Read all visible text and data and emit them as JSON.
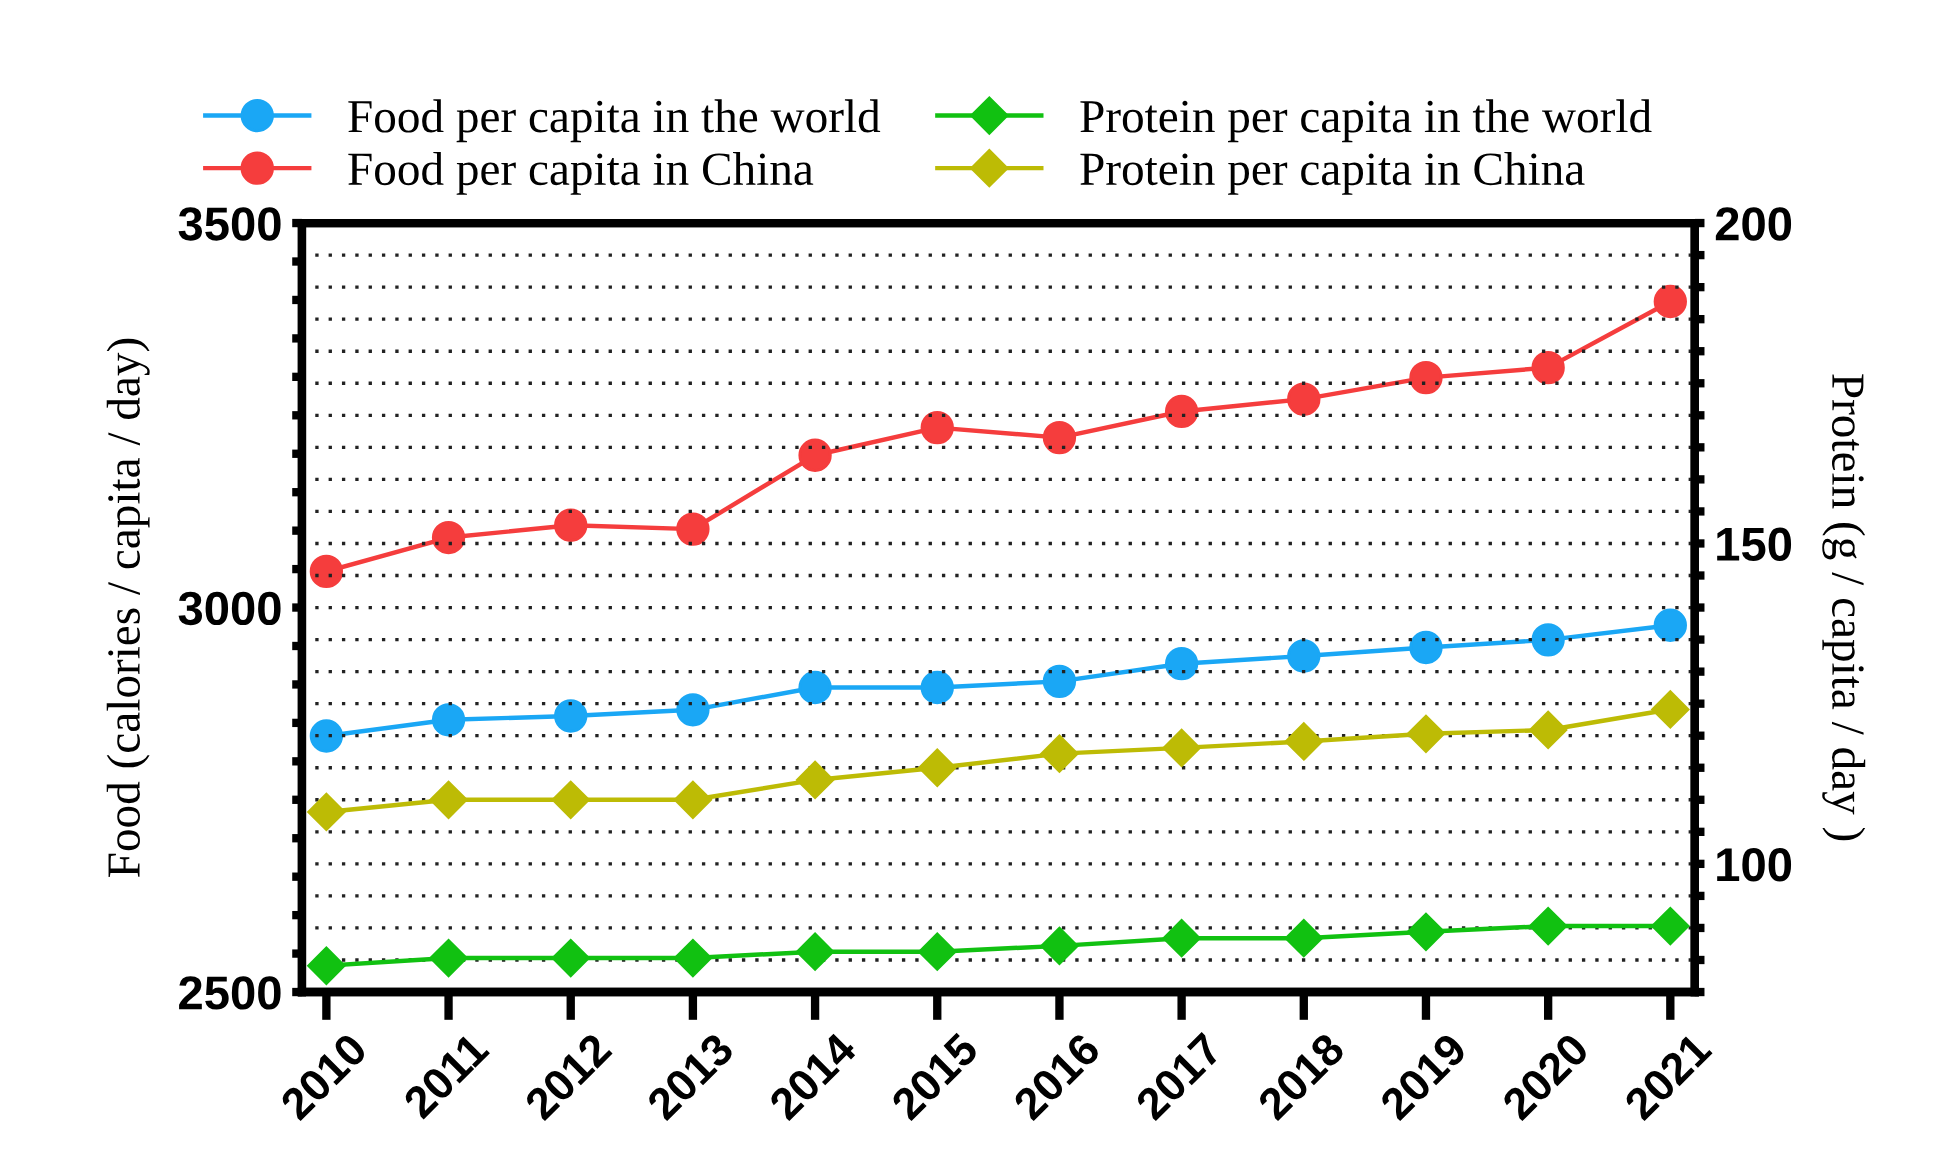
{
  "chart_data": {
    "type": "line",
    "ylabel": "Food (calories / capita / day)",
    "y2label": "Protein (g / capita / day )",
    "categories": [
      "2010",
      "2011",
      "2012",
      "2013",
      "2014",
      "2015",
      "2016",
      "2017",
      "2018",
      "2019",
      "2020",
      "2021"
    ],
    "series": [
      {
        "name": "Food per capita in the world",
        "color": "#1aa7f5",
        "marker": "circle",
        "values": [
          2833,
          2854,
          2859,
          2867,
          2896,
          2896,
          2904,
          2927,
          2937,
          2948,
          2958,
          2977
        ]
      },
      {
        "name": "Food per capita in China",
        "color": "#f53d3d",
        "marker": "circle",
        "values": [
          3047,
          3091,
          3107,
          3102,
          3198,
          3234,
          3221,
          3255,
          3271,
          3299,
          3312,
          3398
        ]
      },
      {
        "name": "Protein per capita in the world",
        "color": "#11c111",
        "marker": "diamond",
        "axis": "y2",
        "values": [
          84.1,
          85.3,
          85.3,
          85.3,
          86.3,
          86.3,
          87.2,
          88.4,
          88.4,
          89.4,
          90.3,
          90.3
        ]
      },
      {
        "name": "Protein per capita in China",
        "color": "#bdbb05",
        "marker": "diamond",
        "axis": "y2",
        "values": [
          108.1,
          110,
          110,
          110,
          113.1,
          115,
          117.2,
          118.1,
          119.1,
          120.3,
          120.9,
          124.1
        ]
      }
    ],
    "ylim": [
      2500,
      3500
    ],
    "yticks": [
      2500,
      {
        "value": 2550,
        "label": null
      },
      {
        "value": 2600,
        "label": null
      },
      {
        "value": 2650,
        "label": null
      },
      {
        "value": 2700,
        "label": null
      },
      {
        "value": 2750,
        "label": null
      },
      {
        "value": 2800,
        "label": null
      },
      {
        "value": 2850,
        "label": null
      },
      {
        "value": 2900,
        "label": null
      },
      {
        "value": 2950,
        "label": null
      },
      3000,
      {
        "value": 3050,
        "label": null
      },
      {
        "value": 3100,
        "label": null
      },
      {
        "value": 3150,
        "label": null
      },
      {
        "value": 3200,
        "label": null
      },
      {
        "value": 3250,
        "label": null
      },
      {
        "value": 3300,
        "label": null
      },
      {
        "value": 3350,
        "label": null
      },
      {
        "value": 3400,
        "label": null
      },
      {
        "value": 3450,
        "label": null
      },
      3500
    ],
    "y2lim": [
      80,
      200
    ],
    "y2ticks": [
      {
        "value": 80,
        "label": null
      },
      {
        "value": 85,
        "label": null
      },
      {
        "value": 90,
        "label": null
      },
      {
        "value": 95,
        "label": null
      },
      100,
      {
        "value": 105,
        "label": null
      },
      {
        "value": 110,
        "label": null
      },
      {
        "value": 115,
        "label": null
      },
      {
        "value": 120,
        "label": null
      },
      {
        "value": 125,
        "label": null
      },
      {
        "value": 130,
        "label": null
      },
      {
        "value": 135,
        "label": null
      },
      {
        "value": 140,
        "label": null
      },
      {
        "value": 145,
        "label": null
      },
      150,
      {
        "value": 155,
        "label": null
      },
      {
        "value": 160,
        "label": null
      },
      {
        "value": 165,
        "label": null
      },
      {
        "value": 170,
        "label": null
      },
      {
        "value": 175,
        "label": null
      },
      {
        "value": 180,
        "label": null
      },
      {
        "value": 185,
        "label": null
      },
      {
        "value": 190,
        "label": null
      },
      {
        "value": 195,
        "label": null
      },
      200
    ],
    "grid": "y2",
    "line_style": "solid",
    "legend": "top"
  }
}
